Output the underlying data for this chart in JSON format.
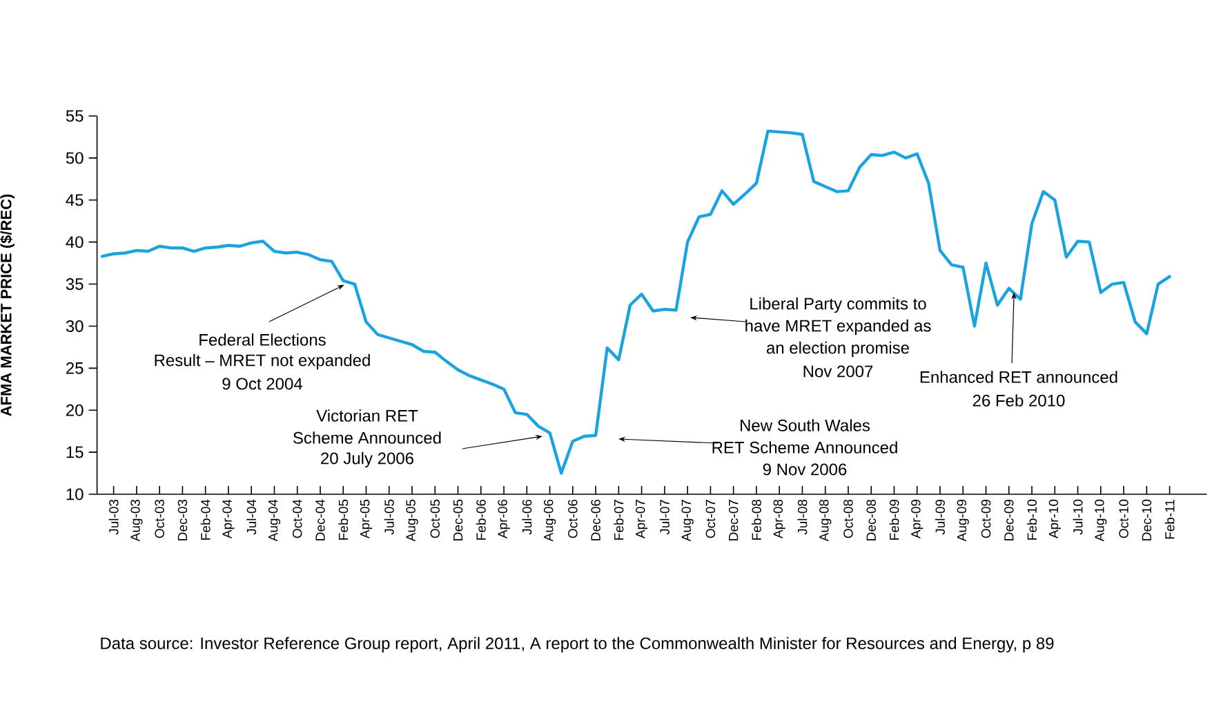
{
  "chart_data": {
    "type": "line",
    "ylabel": "AFMA MARKET PRICE ($/REC)",
    "categories": [
      null,
      "Jul-03",
      null,
      "Aug-03",
      null,
      "Oct-03",
      null,
      "Dec-03",
      null,
      "Feb-04",
      null,
      "Apr-04",
      null,
      "Jul-04",
      null,
      "Aug-04",
      null,
      "Oct-04",
      null,
      "Dec-04",
      null,
      "Feb-05",
      null,
      "Apr-05",
      null,
      "Jul-05",
      null,
      "Aug-05",
      null,
      "Oct-05",
      null,
      "Dec-05",
      null,
      "Feb-06",
      null,
      "Apr-06",
      null,
      "Jul-06",
      null,
      "Aug-06",
      null,
      "Oct-06",
      null,
      "Dec-06",
      null,
      "Feb-07",
      null,
      "Apr-07",
      null,
      "Jul-07",
      null,
      "Aug-07",
      null,
      "Oct-07",
      null,
      "Dec-07",
      null,
      "Feb-08",
      null,
      "Apr-08",
      null,
      "Jul-08",
      null,
      "Aug-08",
      null,
      "Oct-08",
      null,
      "Dec-08",
      null,
      "Feb-09",
      null,
      "Apr-09",
      null,
      "Jul-09",
      null,
      "Aug-09",
      null,
      "Oct-09",
      null,
      "Dec-09",
      null,
      "Feb-10",
      null,
      "Apr-10",
      null,
      "Jul-10",
      null,
      "Aug-10",
      null,
      "Oct-10",
      null,
      "Dec-10",
      null,
      "Feb-11"
    ],
    "series": [
      {
        "color": "#1ba3e0",
        "values": [
          38.3,
          38.6,
          38.7,
          39.0,
          38.9,
          39.5,
          39.3,
          39.3,
          38.9,
          39.3,
          39.4,
          39.6,
          39.5,
          39.9,
          40.1,
          38.9,
          38.7,
          38.8,
          38.5,
          37.9,
          37.7,
          35.4,
          35.0,
          30.5,
          29.0,
          28.6,
          28.2,
          27.8,
          27.0,
          26.9,
          25.8,
          24.8,
          24.1,
          23.6,
          23.1,
          22.5,
          19.7,
          19.5,
          18.1,
          17.3,
          12.5,
          16.3,
          16.9,
          17.0,
          27.4,
          26.0,
          32.5,
          33.8,
          31.8,
          32.0,
          31.9,
          40.0,
          43.0,
          43.3,
          46.1,
          44.5,
          45.7,
          47.0,
          53.2,
          53.1,
          53.0,
          52.8,
          47.2,
          46.6,
          46.0,
          46.1,
          48.9,
          50.4,
          50.3,
          50.7,
          50.0,
          50.5,
          47.0,
          39.0,
          37.3,
          37.0,
          30.0,
          37.5,
          32.5,
          34.5,
          33.2,
          42.2,
          46.0,
          45.0,
          38.2,
          40.1,
          40.0,
          34.0,
          35.0,
          35.2,
          30.5,
          29.1,
          35.0,
          35.9
        ]
      }
    ],
    "ylim": [
      10,
      55
    ],
    "yticks": [
      10,
      15,
      20,
      25,
      30,
      35,
      40,
      45,
      50,
      55
    ],
    "annotations": [
      {
        "text": "Federal Elections",
        "x": "Feb-05",
        "y": 35.4
      },
      "Result – MRET not expanded",
      "9 Oct 2004",
      "Victorian RET",
      "Scheme Announced",
      "20 July 2006",
      "New South Wales",
      "RET Scheme Announced",
      "9 Nov 2006",
      "Liberal Party commits to",
      "have MRET expanded as",
      "an election promise",
      "Nov 2007",
      {
        "text": "Enhanced RET announced",
        "x": "Dec-09",
        "y": 34.5
      },
      "26 Feb 2010",
      "Data source: Investor Reference Group report, April 2011, A report to the Commonwealth Minister for Resources and Energy, p 89"
    ]
  }
}
